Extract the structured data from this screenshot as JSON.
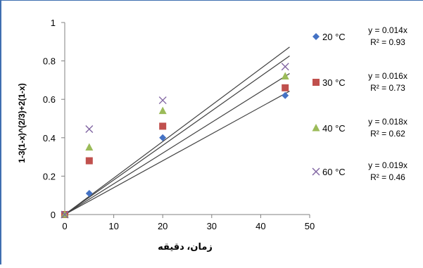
{
  "chart_data": {
    "type": "scatter",
    "xlabel": "زمان، دقیقه",
    "ylabel": "1-3(1-x)^(2/3)+2(1-x)",
    "xlim": [
      0,
      50
    ],
    "ylim": [
      0,
      1
    ],
    "x_ticks": [
      "0",
      "10",
      "20",
      "30",
      "40",
      "50"
    ],
    "y_ticks": [
      "0",
      "0.2",
      "0.4",
      "0.6",
      "0.8",
      "1"
    ],
    "grid": false,
    "legend_position": "right",
    "x": [
      0,
      5,
      20,
      45
    ],
    "series": [
      {
        "name": "20 °C",
        "marker": "diamond",
        "color": "#4472c4",
        "values": [
          0,
          0.11,
          0.4,
          0.62
        ],
        "fit": {
          "slope": 0.014,
          "equation": "y = 0.014x",
          "r2": "R² = 0.93"
        }
      },
      {
        "name": "30 °C",
        "marker": "square",
        "color": "#c0504d",
        "values": [
          0,
          0.28,
          0.46,
          0.66
        ],
        "fit": {
          "slope": 0.016,
          "equation": "y = 0.016x",
          "r2": "R² = 0.73"
        }
      },
      {
        "name": "40 °C",
        "marker": "triangle",
        "color": "#9bbb59",
        "values": [
          0,
          0.35,
          0.54,
          0.72
        ],
        "fit": {
          "slope": 0.018,
          "equation": "y = 0.018x",
          "r2": "R² = 0.62"
        }
      },
      {
        "name": "60 °C",
        "marker": "x",
        "color": "#8064a2",
        "values": [
          0,
          0.445,
          0.595,
          0.77
        ],
        "fit": {
          "slope": 0.019,
          "equation": "y = 0.019x",
          "r2": "R² = 0.46"
        }
      }
    ],
    "trendline_color": "#404040"
  }
}
